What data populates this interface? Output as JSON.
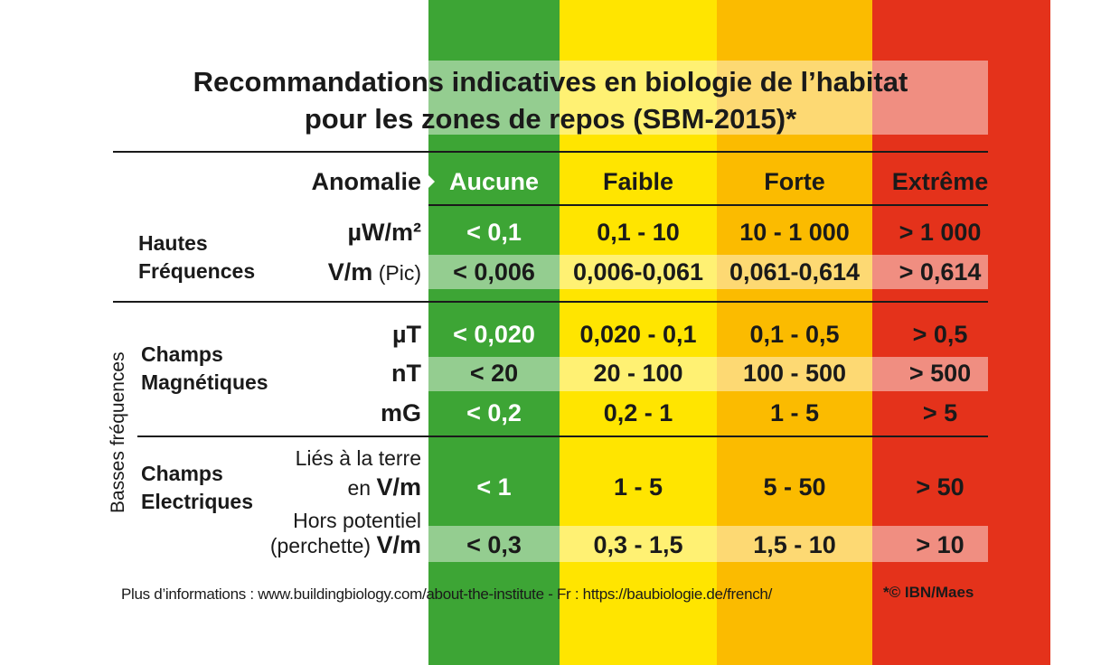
{
  "colors": {
    "aucune": "#3da535",
    "faible": "#ffe500",
    "forte": "#fbbb00",
    "extreme": "#e4321b"
  },
  "title": {
    "line1": "Recommandations indicatives en biologie de l’habitat",
    "line2": "pour les zones de repos (SBM-2015)*"
  },
  "header": {
    "anomalie": "Anomalie",
    "levels": [
      "Aucune",
      "Faible",
      "Forte",
      "Extrême"
    ]
  },
  "hf": {
    "label_line1": "Hautes",
    "label_line2": "Fréquences",
    "rows": [
      {
        "unit": "µW/m²",
        "unit_note": "",
        "values": [
          "< 0,1",
          "0,1 - 10",
          "10 - 1 000",
          "> 1 000"
        ]
      },
      {
        "unit": "V/m",
        "unit_note": " (Pic)",
        "values": [
          "< 0,006",
          "0,006-0,061",
          "0,061-0,614",
          "> 0,614"
        ]
      }
    ]
  },
  "basses_frequences_label": "Basses fréquences",
  "mag": {
    "label_line1": "Champs",
    "label_line2": "Magnétiques",
    "rows": [
      {
        "unit": "µT",
        "values": [
          "< 0,020",
          "0,020 - 0,1",
          "0,1 - 0,5",
          "> 0,5"
        ]
      },
      {
        "unit": "nT",
        "values": [
          "< 20",
          "20 - 100",
          "100 - 500",
          "> 500"
        ]
      },
      {
        "unit": "mG",
        "values": [
          "< 0,2",
          "0,2 - 1",
          "1 - 5",
          "> 5"
        ]
      }
    ]
  },
  "elec": {
    "label_line1": "Champs",
    "label_line2": "Electriques",
    "rows": [
      {
        "unit_line1": "Liés à la terre",
        "unit_line2_prefix": "en ",
        "unit": "V/m",
        "values": [
          "< 1",
          "1 - 5",
          "5 - 50",
          "> 50"
        ]
      },
      {
        "unit_line1": "Hors potentiel",
        "unit_line2_prefix": "(perchette) ",
        "unit": "V/m",
        "values": [
          "< 0,3",
          "0,3 - 1,5",
          "1,5 - 10",
          "> 10"
        ]
      }
    ]
  },
  "footer": {
    "info": "Plus d’informations : www.buildingbiology.com/about-the-institute - Fr : https://baubiologie.de/french/",
    "copyright": "*© IBN/Maes"
  }
}
